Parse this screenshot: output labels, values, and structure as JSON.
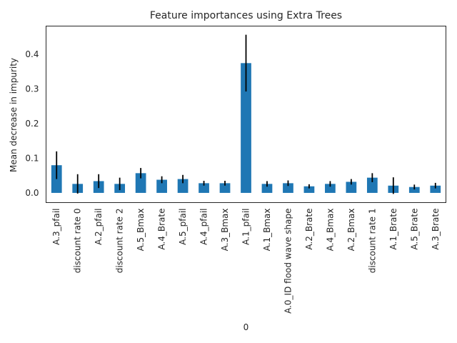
{
  "chart_data": {
    "type": "bar",
    "title": "Feature importances using Extra Trees",
    "xlabel": "0",
    "ylabel": "Mean decrease in impurity",
    "ylim": [
      -0.028,
      0.482
    ],
    "yticks": [
      0.0,
      0.1,
      0.2,
      0.3,
      0.4
    ],
    "ytick_labels": [
      "0.0",
      "0.1",
      "0.2",
      "0.3",
      "0.4"
    ],
    "grid": false,
    "bar_color": "#1f77b4",
    "error_color": "#000000",
    "categories": [
      "A.3_pfail",
      "discount rate 0",
      "A.2_pfail",
      "discount rate 2",
      "A.5_Bmax",
      "A.4_Brate",
      "A.5_pfail",
      "A.4_pfail",
      "A.3_Bmax",
      "A.1_pfail",
      "A.1_Bmax",
      "A.0_ID flood wave shape",
      "A.2_Brate",
      "A.4_Bmax",
      "A.2_Bmax",
      "discount rate 1",
      "A.1_Brate",
      "A.5_Brate",
      "A.3_Brate"
    ],
    "values": [
      0.08,
      0.026,
      0.034,
      0.026,
      0.057,
      0.038,
      0.04,
      0.028,
      0.028,
      0.375,
      0.026,
      0.028,
      0.019,
      0.026,
      0.032,
      0.044,
      0.021,
      0.017,
      0.021
    ],
    "errors": [
      0.04,
      0.028,
      0.02,
      0.018,
      0.015,
      0.01,
      0.012,
      0.007,
      0.007,
      0.082,
      0.008,
      0.008,
      0.006,
      0.008,
      0.008,
      0.013,
      0.024,
      0.007,
      0.008
    ]
  }
}
